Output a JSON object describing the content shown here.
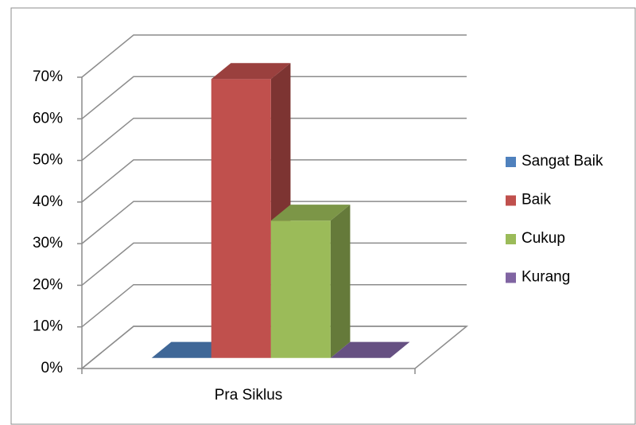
{
  "chart_data": {
    "type": "bar3d",
    "categories": [
      "Pra Siklus"
    ],
    "series": [
      {
        "name": "Sangat Baik",
        "color": "#4f81bd",
        "values": [
          0
        ]
      },
      {
        "name": "Baik",
        "color": "#c0504d",
        "values": [
          67
        ]
      },
      {
        "name": "Cukup",
        "color": "#9bbb59",
        "values": [
          33
        ]
      },
      {
        "name": "Kurang",
        "color": "#8064a2",
        "values": [
          0
        ]
      }
    ],
    "ylim": [
      0,
      70
    ],
    "yticks": [
      {
        "value": 0,
        "label": "0%"
      },
      {
        "value": 10,
        "label": "10%"
      },
      {
        "value": 20,
        "label": "20%"
      },
      {
        "value": 30,
        "label": "30%"
      },
      {
        "value": 40,
        "label": "40%"
      },
      {
        "value": 50,
        "label": "50%"
      },
      {
        "value": 60,
        "label": "60%"
      },
      {
        "value": 70,
        "label": "70%"
      }
    ],
    "grid": true,
    "legend": "right"
  }
}
